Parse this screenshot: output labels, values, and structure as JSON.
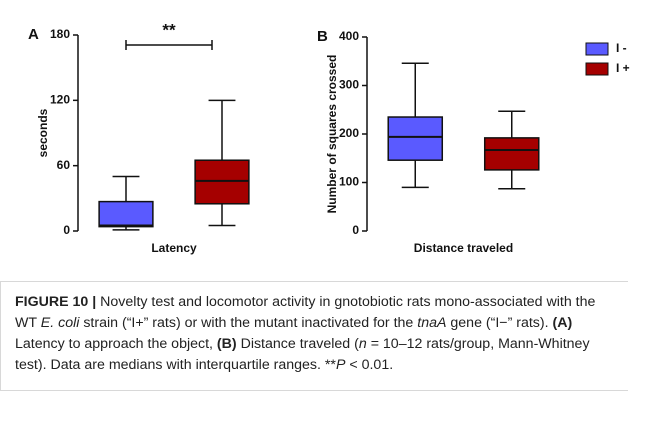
{
  "chart_data": [
    {
      "type": "box",
      "panel": "A",
      "ylabel": "seconds",
      "xlabel": "Latency",
      "ylim": [
        0,
        180
      ],
      "yticks": [
        0,
        60,
        120,
        180
      ],
      "annotation": "**",
      "series": [
        {
          "name": "I -",
          "color": "#5a5aff",
          "min": 1,
          "q1": 4,
          "median": 5,
          "q3": 27,
          "max": 50
        },
        {
          "name": "I +",
          "color": "#a50000",
          "min": 5,
          "q1": 25,
          "median": 46,
          "q3": 65,
          "max": 120
        }
      ]
    },
    {
      "type": "box",
      "panel": "B",
      "ylabel": "Number of squares crossed",
      "xlabel": "Distance traveled",
      "ylim": [
        0,
        400
      ],
      "yticks": [
        0,
        100,
        200,
        300,
        400
      ],
      "legend": "top-right",
      "series": [
        {
          "name": "I -",
          "color": "#5a5aff",
          "min": 90,
          "q1": 146,
          "median": 194,
          "q3": 235,
          "max": 346
        },
        {
          "name": "I +",
          "color": "#a50000",
          "min": 87,
          "q1": 126,
          "median": 167,
          "q3": 192,
          "max": 247
        }
      ]
    }
  ],
  "caption": {
    "runs": [
      {
        "text": "FIGURE 10 |",
        "style": "bold"
      },
      {
        "text": " Novelty test and locomotor activity in gnotobiotic rats mono-associated with the WT ",
        "style": "normal"
      },
      {
        "text": "E. coli",
        "style": "italic"
      },
      {
        "text": " strain (“I+” rats) or with the mutant inactivated for the ",
        "style": "normal"
      },
      {
        "text": "tnaA",
        "style": "italic"
      },
      {
        "text": " gene (“I−” rats). ",
        "style": "normal"
      },
      {
        "text": "(A)",
        "style": "bold"
      },
      {
        "text": " Latency to approach the object, ",
        "style": "normal"
      },
      {
        "text": "(B)",
        "style": "bold"
      },
      {
        "text": " Distance traveled (",
        "style": "normal"
      },
      {
        "text": "n",
        "style": "italic"
      },
      {
        "text": " = 10–12 rats/group, Mann-Whitney test). Data are medians with interquartile ranges. **",
        "style": "normal"
      },
      {
        "text": "P",
        "style": "italic"
      },
      {
        "text": " < 0.01.",
        "style": "normal"
      }
    ]
  }
}
